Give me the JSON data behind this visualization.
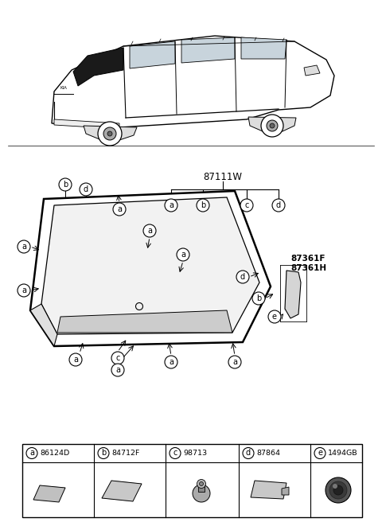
{
  "bg_color": "#ffffff",
  "line_color": "#000000",
  "part_number_main": "87111W",
  "part_numbers_right": [
    "87361F",
    "87361H"
  ],
  "legend": [
    {
      "letter": "a",
      "code": "86124D"
    },
    {
      "letter": "b",
      "code": "84712F"
    },
    {
      "letter": "c",
      "code": "98713"
    },
    {
      "letter": "d",
      "code": "87864"
    },
    {
      "letter": "e",
      "code": "1494GB"
    }
  ],
  "bracket_labels": [
    "a",
    "b",
    "c",
    "d"
  ],
  "glass_fill": "#f2f2f2",
  "glass_edge": "#000000",
  "frame_fill": "#ffffff",
  "garnish_fill": "#dddddd",
  "circle_fill": "#ffffff",
  "circle_edge": "#000000"
}
